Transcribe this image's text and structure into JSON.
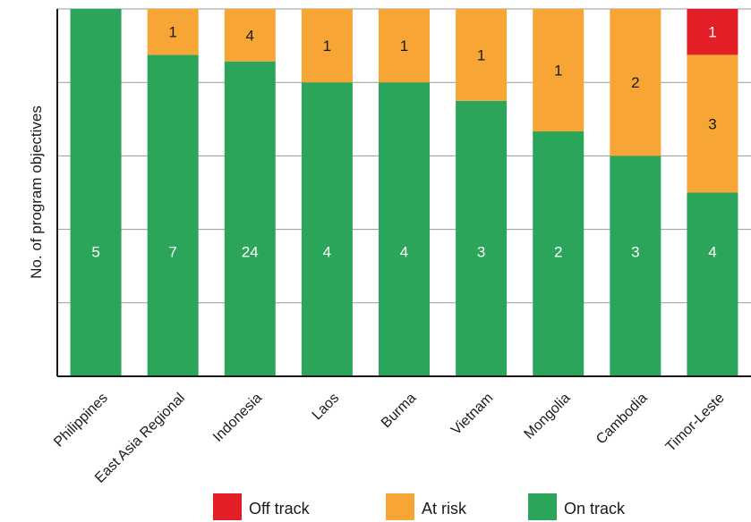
{
  "chart_data": {
    "type": "bar",
    "stacked": true,
    "normalized": true,
    "ylabel": "No. of program objectives",
    "categories": [
      "Philippines",
      "East Asia Regional",
      "Indonesia",
      "Laos",
      "Burma",
      "Vietnam",
      "Mongolia",
      "Cambodia",
      "Timor-Leste"
    ],
    "series": [
      {
        "name": "On track",
        "color": "#2aa55a",
        "values": [
          5,
          7,
          24,
          4,
          4,
          3,
          2,
          3,
          4
        ],
        "labels": [
          "5",
          "7",
          "24",
          "4",
          "4",
          "3",
          "2",
          "3",
          "4"
        ]
      },
      {
        "name": "At risk",
        "color": "#f7a535",
        "values": [
          0,
          1,
          4,
          1,
          1,
          1,
          1,
          2,
          3
        ],
        "labels": [
          "",
          "1",
          "4",
          "1",
          "1",
          "1",
          "1",
          "2",
          "3"
        ]
      },
      {
        "name": "Off track",
        "color": "#e41e26",
        "values": [
          0,
          0,
          0,
          0,
          0,
          0,
          0,
          0,
          1
        ],
        "labels": [
          "",
          "",
          "",
          "",
          "",
          "",
          "",
          "",
          "1"
        ]
      }
    ],
    "legend": [
      {
        "name": "Off track",
        "color": "#e41e26"
      },
      {
        "name": "At risk",
        "color": "#f7a535"
      },
      {
        "name": "On track",
        "color": "#2aa55a"
      }
    ],
    "legend_position": "bottom",
    "grid": true
  }
}
